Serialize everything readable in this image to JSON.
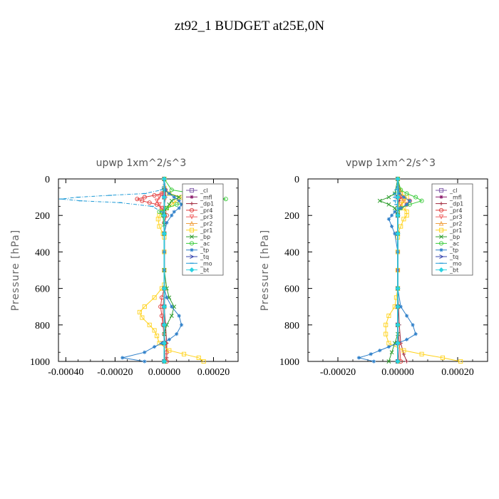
{
  "figure": {
    "title": "zt92_1  BUDGET at25E,0N"
  },
  "chart_data": [
    {
      "type": "line",
      "title": "upwp   1xm^2/s^3",
      "xlabel": "",
      "ylabel": "Pressure [hPa]",
      "xlim": [
        -0.00043,
        0.0003
      ],
      "ylim": [
        1000,
        0
      ],
      "xticks": [
        -0.0004,
        -0.0002,
        0.0,
        0.0002
      ],
      "xtick_labels": [
        "-0.00040",
        "-0.00020",
        "0.00000",
        "0.00020"
      ],
      "yticks": [
        0,
        200,
        400,
        600,
        800,
        1000
      ],
      "ytick_labels": [
        "0",
        "200",
        "400",
        "600",
        "800",
        "1000"
      ],
      "legend_position": "top-right",
      "grid": false,
      "series": [
        {
          "name": "_cl",
          "color": "#7e57a8",
          "marker": "square",
          "pressure": [
            0,
            100,
            200,
            300,
            400,
            500,
            600,
            700,
            800,
            900,
            1000
          ],
          "values": [
            0,
            0,
            0,
            0,
            0,
            0,
            0,
            0,
            0,
            0,
            0
          ]
        },
        {
          "name": "_mfl",
          "color": "#8b1a6b",
          "marker": "star",
          "pressure": [
            0,
            100,
            200,
            300,
            400,
            500,
            600,
            700,
            800,
            900,
            1000
          ],
          "values": [
            0,
            0,
            0,
            0,
            0,
            0,
            0,
            0,
            0,
            0,
            0
          ]
        },
        {
          "name": "_dp1",
          "color": "#a0283c",
          "marker": "plus",
          "pressure": [
            0,
            60,
            100,
            150,
            200,
            300,
            500,
            700,
            800,
            900,
            980,
            1000
          ],
          "values": [
            0,
            5e-06,
            5e-06,
            0,
            0,
            0,
            0,
            0,
            5e-06,
            1e-05,
            1e-05,
            5e-06
          ]
        },
        {
          "name": "_pr4",
          "color": "#e03a3a",
          "marker": "circle",
          "pressure": [
            0,
            60,
            80,
            90,
            100,
            110,
            120,
            130,
            140,
            160,
            180,
            200,
            240,
            300,
            500,
            600,
            650,
            700,
            750,
            800,
            850,
            900,
            950,
            1000
          ],
          "values": [
            0,
            5e-06,
            -1e-05,
            -4e-05,
            -8e-05,
            -0.00011,
            -9e-05,
            -6e-05,
            -3e-05,
            -1e-05,
            0,
            1e-05,
            0,
            0,
            0,
            0,
            -1e-05,
            -1.5e-05,
            -1e-05,
            -5e-06,
            0,
            5e-06,
            1e-05,
            1e-05
          ]
        },
        {
          "name": "_pr3",
          "color": "#f06060",
          "marker": "triangle-down",
          "pressure": [
            0,
            80,
            100,
            120,
            140,
            160,
            200,
            300,
            600,
            700,
            800,
            900,
            1000
          ],
          "values": [
            0,
            -5e-06,
            -2e-05,
            -3e-05,
            -2e-05,
            -1e-05,
            0,
            0,
            0,
            -5e-06,
            -5e-06,
            0,
            5e-06
          ]
        },
        {
          "name": "_pr2",
          "color": "#f0a040",
          "marker": "triangle-up",
          "pressure": [
            0,
            100,
            200,
            300,
            600,
            700,
            800,
            900,
            1000
          ],
          "values": [
            0,
            0,
            0,
            0,
            0,
            0,
            0,
            0,
            0
          ]
        },
        {
          "name": "_pr1",
          "color": "#ffd21a",
          "marker": "square",
          "pressure": [
            0,
            50,
            80,
            100,
            120,
            140,
            160,
            180,
            200,
            220,
            260,
            300,
            320,
            400,
            500,
            580,
            600,
            650,
            700,
            730,
            760,
            800,
            830,
            860,
            900,
            940,
            960,
            980,
            1000
          ],
          "values": [
            0,
            0,
            2e-05,
            7e-05,
            5e-05,
            3e-05,
            1e-05,
            -1e-05,
            -2e-05,
            -2.5e-05,
            -2e-05,
            -5e-06,
            0,
            0,
            0,
            0,
            -1e-05,
            -4e-05,
            -8e-05,
            -0.0001,
            -9e-05,
            -6e-05,
            -4e-05,
            -3e-05,
            -2e-05,
            2e-05,
            8e-05,
            0.00014,
            0.00016
          ]
        },
        {
          "name": "_bp",
          "color": "#2e9e2e",
          "marker": "x",
          "pressure": [
            0,
            60,
            80,
            100,
            120,
            140,
            160,
            180,
            200,
            250,
            300,
            500,
            600,
            650,
            700,
            750,
            800,
            850,
            900,
            1000
          ],
          "values": [
            0,
            0,
            2e-05,
            6e-05,
            3e-05,
            2e-05,
            1e-05,
            0,
            0,
            0,
            0,
            0,
            1e-05,
            2e-05,
            4e-05,
            3e-05,
            1e-05,
            0,
            0,
            0
          ]
        },
        {
          "name": "_ac",
          "color": "#3dcc3d",
          "marker": "circle",
          "pressure": [
            0,
            60,
            80,
            100,
            110,
            120,
            130,
            140,
            160,
            180,
            200,
            300,
            600,
            700,
            800,
            900,
            1000
          ],
          "values": [
            0,
            3e-05,
            0.00012,
            0.00022,
            0.00025,
            0.00016,
            9e-05,
            5e-05,
            1e-05,
            -2e-05,
            -5e-06,
            0,
            0,
            0,
            0,
            0,
            0
          ]
        },
        {
          "name": "_tp",
          "color": "#2d7fc9",
          "marker": "star",
          "pressure": [
            0,
            60,
            80,
            100,
            120,
            140,
            160,
            180,
            200,
            240,
            300,
            400,
            500,
            600,
            650,
            700,
            750,
            800,
            850,
            880,
            900,
            920,
            950,
            980,
            1000
          ],
          "values": [
            0,
            5e-06,
            2e-05,
            4e-05,
            6e-05,
            7e-05,
            6e-05,
            4e-05,
            3e-05,
            1e-05,
            0,
            0,
            0,
            0,
            1e-05,
            3e-05,
            6e-05,
            7e-05,
            5e-05,
            2e-05,
            -1e-05,
            -4e-05,
            -8e-05,
            -0.00017,
            -8e-05
          ]
        },
        {
          "name": "_tq",
          "color": "#3a48b0",
          "marker": "arrow-right",
          "pressure": [
            0,
            100,
            200,
            300,
            600,
            700,
            800,
            900,
            1000
          ],
          "values": [
            0,
            0,
            0,
            0,
            0,
            0,
            0,
            0,
            0
          ]
        },
        {
          "name": "_mo",
          "color": "#1e9ad6",
          "marker": "dash",
          "pressure": [
            0,
            60,
            80,
            90,
            100,
            110,
            120,
            130,
            150,
            180,
            200,
            300,
            600,
            900,
            1000
          ],
          "values": [
            0,
            -1e-05,
            -8e-05,
            -0.00022,
            -0.00035,
            -0.00042,
            -0.00034,
            -0.00018,
            -5e-05,
            -1e-05,
            0,
            0,
            0,
            0,
            0
          ]
        },
        {
          "name": "_bt",
          "color": "#2ad1e0",
          "marker": "diamond",
          "pressure": [
            0,
            100,
            200,
            300,
            600,
            700,
            800,
            900,
            1000
          ],
          "values": [
            0,
            0,
            0,
            0,
            0,
            0,
            0,
            0,
            0
          ]
        }
      ]
    },
    {
      "type": "line",
      "title": "vpwp   1xm^2/s^3",
      "xlabel": "",
      "ylabel": "Pressure [hPa]",
      "xlim": [
        -0.0003,
        0.0003
      ],
      "ylim": [
        1000,
        0
      ],
      "xticks": [
        -0.0002,
        0.0,
        0.0002
      ],
      "xtick_labels": [
        "-0.00020",
        "0.00000",
        "0.00020"
      ],
      "yticks": [
        0,
        200,
        400,
        600,
        800,
        1000
      ],
      "ytick_labels": [
        "0",
        "200",
        "400",
        "600",
        "800",
        "1000"
      ],
      "legend_position": "top-right",
      "grid": false,
      "series": [
        {
          "name": "_cl",
          "color": "#7e57a8",
          "marker": "square",
          "pressure": [
            0,
            100,
            200,
            300,
            400,
            500,
            600,
            700,
            800,
            900,
            1000
          ],
          "values": [
            0,
            0,
            0,
            0,
            0,
            0,
            0,
            0,
            0,
            0,
            0
          ]
        },
        {
          "name": "_mfl",
          "color": "#8b1a6b",
          "marker": "star",
          "pressure": [
            0,
            100,
            200,
            300,
            400,
            500,
            600,
            700,
            800,
            900,
            1000
          ],
          "values": [
            0,
            0,
            0,
            0,
            0,
            0,
            0,
            0,
            0,
            0,
            0
          ]
        },
        {
          "name": "_dp1",
          "color": "#a0283c",
          "marker": "plus",
          "pressure": [
            0,
            80,
            100,
            120,
            150,
            200,
            300,
            600,
            800,
            900,
            960,
            1000
          ],
          "values": [
            0,
            5e-06,
            1e-05,
            5e-06,
            0,
            0,
            0,
            0,
            5e-06,
            1e-05,
            2e-05,
            3e-05
          ]
        },
        {
          "name": "_pr4",
          "color": "#e03a3a",
          "marker": "circle",
          "pressure": [
            0,
            80,
            100,
            120,
            140,
            160,
            180,
            200,
            300,
            600,
            700,
            800,
            900,
            1000
          ],
          "values": [
            0,
            1e-05,
            2e-05,
            4e-05,
            3e-05,
            1e-05,
            0,
            0,
            0,
            0,
            0,
            0,
            5e-06,
            1e-05
          ]
        },
        {
          "name": "_pr3",
          "color": "#f06060",
          "marker": "triangle-down",
          "pressure": [
            0,
            80,
            100,
            120,
            140,
            160,
            200,
            300,
            600,
            800,
            900,
            1000
          ],
          "values": [
            0,
            5e-06,
            1e-05,
            2e-05,
            1e-05,
            5e-06,
            0,
            0,
            0,
            0,
            0,
            5e-06
          ]
        },
        {
          "name": "_pr2",
          "color": "#f0a040",
          "marker": "triangle-up",
          "pressure": [
            0,
            100,
            200,
            300,
            600,
            700,
            800,
            900,
            1000
          ],
          "values": [
            0,
            0,
            0,
            0,
            0,
            0,
            0,
            0,
            0
          ]
        },
        {
          "name": "_pr1",
          "color": "#ffd21a",
          "marker": "square",
          "pressure": [
            0,
            60,
            80,
            100,
            120,
            140,
            160,
            180,
            200,
            220,
            260,
            300,
            320,
            400,
            500,
            600,
            650,
            700,
            750,
            800,
            850,
            900,
            940,
            960,
            980,
            1000
          ],
          "values": [
            0,
            5e-06,
            1e-05,
            3e-05,
            2e-05,
            1e-05,
            2e-05,
            3e-05,
            3e-05,
            2e-05,
            1e-05,
            0,
            0,
            0,
            0,
            0,
            -5e-06,
            -1e-05,
            -3e-05,
            -4e-05,
            -4e-05,
            -3e-05,
            2e-05,
            8e-05,
            0.00015,
            0.00021
          ]
        },
        {
          "name": "_bp",
          "color": "#2e9e2e",
          "marker": "x",
          "pressure": [
            0,
            80,
            100,
            120,
            140,
            160,
            200,
            300,
            600,
            700,
            800,
            850,
            900,
            950,
            1000
          ],
          "values": [
            0,
            -1e-05,
            -3e-05,
            -6e-05,
            -3e-05,
            -1e-05,
            0,
            0,
            0,
            0,
            0,
            0,
            -1e-05,
            -2e-05,
            -3e-05
          ]
        },
        {
          "name": "_ac",
          "color": "#3dcc3d",
          "marker": "circle",
          "pressure": [
            0,
            60,
            80,
            100,
            120,
            140,
            160,
            180,
            200,
            300,
            600,
            800,
            900,
            1000
          ],
          "values": [
            0,
            1e-05,
            3e-05,
            6e-05,
            8e-05,
            4e-05,
            1e-05,
            0,
            0,
            0,
            0,
            0,
            0,
            0
          ]
        },
        {
          "name": "_tp",
          "color": "#2d7fc9",
          "marker": "star",
          "pressure": [
            0,
            80,
            100,
            120,
            140,
            160,
            180,
            200,
            220,
            260,
            300,
            400,
            600,
            700,
            750,
            800,
            850,
            880,
            900,
            920,
            940,
            960,
            980,
            1000
          ],
          "values": [
            0,
            5e-06,
            2e-05,
            4e-05,
            3e-05,
            1e-05,
            -1e-05,
            -2e-05,
            -3e-05,
            -2e-05,
            -1e-05,
            0,
            0,
            1e-05,
            3e-05,
            5e-05,
            6e-05,
            3e-05,
            0,
            -3e-05,
            -6e-05,
            -9e-05,
            -0.00013,
            -8e-05
          ]
        },
        {
          "name": "_tq",
          "color": "#3a48b0",
          "marker": "arrow-right",
          "pressure": [
            0,
            100,
            200,
            300,
            600,
            700,
            800,
            900,
            1000
          ],
          "values": [
            0,
            0,
            0,
            0,
            0,
            0,
            0,
            0,
            0
          ]
        },
        {
          "name": "_mo",
          "color": "#1e9ad6",
          "marker": "dash",
          "pressure": [
            0,
            60,
            80,
            100,
            120,
            140,
            160,
            200,
            300,
            600,
            900,
            1000
          ],
          "values": [
            0,
            -5e-06,
            -1e-05,
            -1e-05,
            -1e-05,
            -5e-06,
            0,
            0,
            0,
            0,
            0,
            0
          ]
        },
        {
          "name": "_bt",
          "color": "#2ad1e0",
          "marker": "diamond",
          "pressure": [
            0,
            100,
            200,
            300,
            600,
            700,
            800,
            900,
            1000
          ],
          "values": [
            0,
            0,
            0,
            0,
            0,
            0,
            0,
            0,
            0
          ]
        }
      ]
    }
  ]
}
